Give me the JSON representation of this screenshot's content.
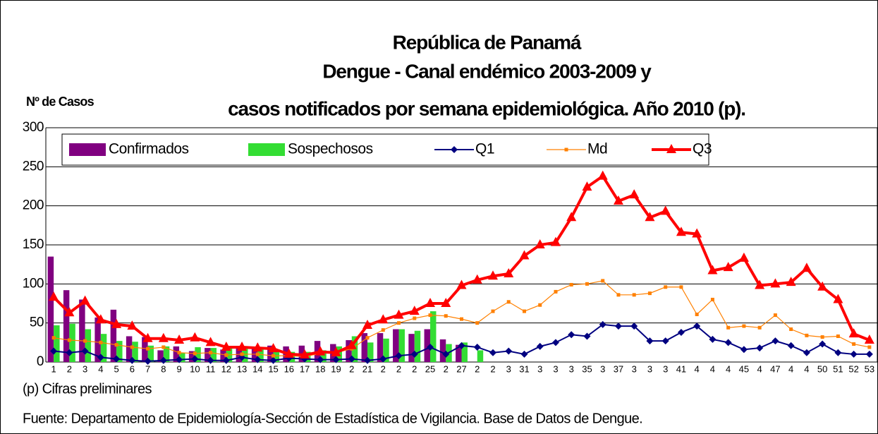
{
  "chart_data": {
    "type": "bar",
    "title": [
      "República de Panamá",
      "Dengue - Canal endémico 2003-2009 y",
      "casos notificados por semana epidemiológica. Año 2010 (p)."
    ],
    "y_label": "Nº de Casos",
    "footnote": "(p) Cifras preliminares",
    "source": "Fuente: Departamento de Epidemiología-Sección de Estadística de Vigilancia. Base de Datos de Dengue.",
    "categories": [
      "1",
      "2",
      "3",
      "4",
      "5",
      "6",
      "7",
      "8",
      "9",
      "10",
      "11",
      "12",
      "13",
      "14",
      "15",
      "16",
      "17",
      "18",
      "19",
      "2",
      "21",
      "2",
      "2",
      "2",
      "25",
      "2",
      "27",
      "2",
      "2",
      "3",
      "31",
      "3",
      "3",
      "3",
      "35",
      "3",
      "37",
      "3",
      "3",
      "3",
      "41",
      "4",
      "4",
      "4",
      "45",
      "4",
      "47",
      "4",
      "4",
      "50",
      "51",
      "52",
      "53"
    ],
    "ylim": [
      0,
      300
    ],
    "yticks": [
      0,
      50,
      100,
      150,
      200,
      250,
      300
    ],
    "grid": true,
    "legend": "top-left",
    "series": [
      {
        "name": "Confirmados",
        "kind": "bar",
        "color": "#800080",
        "values": [
          135,
          92,
          80,
          57,
          67,
          33,
          32,
          15,
          20,
          14,
          18,
          16,
          18,
          17,
          21,
          20,
          21,
          27,
          23,
          28,
          37,
          37,
          42,
          36,
          42,
          29,
          22,
          null,
          null,
          null,
          null,
          null,
          null,
          null,
          null,
          null,
          null,
          null,
          null,
          null,
          null,
          null,
          null,
          null,
          null,
          null,
          null,
          null,
          null,
          null,
          null,
          null,
          null
        ]
      },
      {
        "name": "Sospechosos",
        "kind": "bar",
        "color": "#33dd33",
        "values": [
          47,
          49,
          42,
          36,
          27,
          26,
          21,
          20,
          12,
          19,
          18,
          18,
          20,
          19,
          14,
          13,
          13,
          15,
          20,
          33,
          25,
          30,
          42,
          40,
          65,
          23,
          25,
          15,
          null,
          null,
          null,
          null,
          null,
          null,
          null,
          null,
          null,
          null,
          null,
          null,
          null,
          null,
          null,
          null,
          null,
          null,
          null,
          null,
          null,
          null,
          null,
          null,
          null
        ]
      },
      {
        "name": "Q1",
        "kind": "line",
        "marker": "diamond",
        "color": "#000080",
        "values": [
          14,
          12,
          14,
          6,
          4,
          2,
          1,
          2,
          3,
          4,
          2,
          2,
          6,
          3,
          2,
          5,
          4,
          3,
          3,
          4,
          2,
          4,
          8,
          10,
          19,
          10,
          21,
          19,
          12,
          14,
          10,
          20,
          25,
          35,
          33,
          48,
          46,
          46,
          27,
          27,
          38,
          46,
          29,
          25,
          16,
          18,
          27,
          21,
          12,
          23,
          12,
          10,
          10
        ]
      },
      {
        "name": "Md",
        "kind": "line",
        "marker": "square",
        "color": "#ff8000",
        "values": [
          31,
          28,
          27,
          25,
          22,
          19,
          17,
          19,
          12,
          11,
          12,
          9,
          10,
          10,
          8,
          8,
          7,
          11,
          12,
          17,
          31,
          41,
          50,
          56,
          60,
          59,
          55,
          50,
          65,
          77,
          65,
          73,
          90,
          99,
          100,
          104,
          86,
          86,
          88,
          96,
          96,
          61,
          80,
          44,
          46,
          44,
          60,
          42,
          34,
          32,
          33,
          23,
          19
        ]
      },
      {
        "name": "Q3",
        "kind": "line",
        "marker": "triangle",
        "color": "#ff0000",
        "values": [
          83,
          63,
          78,
          54,
          48,
          46,
          30,
          30,
          28,
          31,
          25,
          19,
          19,
          18,
          17,
          10,
          9,
          13,
          12,
          21,
          47,
          54,
          60,
          65,
          75,
          75,
          98,
          105,
          110,
          113,
          136,
          150,
          153,
          185,
          224,
          238,
          206,
          214,
          185,
          193,
          166,
          164,
          117,
          121,
          133,
          98,
          100,
          102,
          120,
          96,
          80,
          36,
          28
        ]
      }
    ]
  }
}
